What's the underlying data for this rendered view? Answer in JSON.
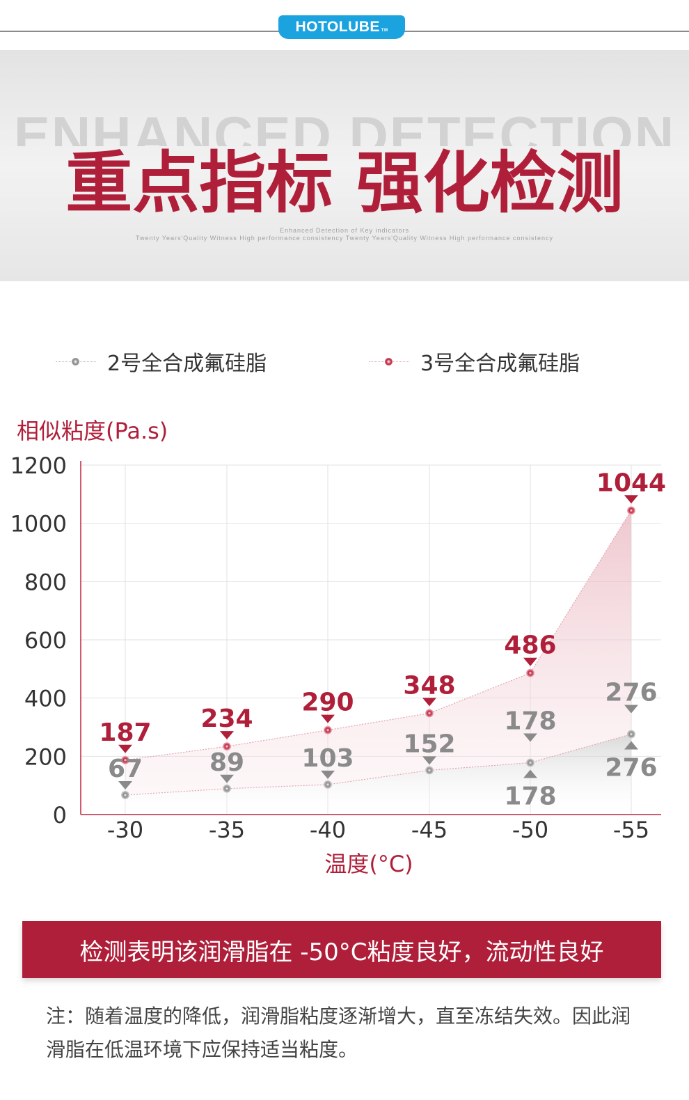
{
  "brand": {
    "name": "HOTOLUBE",
    "tm": "TM",
    "color": "#1aa3df"
  },
  "hero": {
    "title_en": "ENHANCED DETECTION",
    "title_cn": "重点指标 强化检测",
    "subtitle_1": "Enhanced Detection of Key indicators",
    "subtitle_2": "Twenty Years'Quality Witness High performance consistency Twenty Years'Quality Witness High performance consistency"
  },
  "legend": [
    {
      "label": "2号全合成氟硅脂",
      "color": "#8a8a8a"
    },
    {
      "label": "3号全合成氟硅脂",
      "color": "#c0243f"
    }
  ],
  "chart_data": {
    "type": "area",
    "ylabel": "相似粘度(Pa.s)",
    "xlabel": "温度(°C)",
    "categories": [
      "-30",
      "-35",
      "-40",
      "-45",
      "-50",
      "-55"
    ],
    "yticks": [
      "1200",
      "1000",
      "800",
      "600",
      "400",
      "200",
      "0"
    ],
    "ylim": [
      0,
      1200
    ],
    "grid": true,
    "legend_position": "top",
    "series": [
      {
        "name": "2号全合成氟硅脂",
        "color": "#8a8a8a",
        "values": [
          67,
          89,
          103,
          152,
          178,
          276
        ]
      },
      {
        "name": "3号全合成氟硅脂",
        "color": "#c0243f",
        "values": [
          187,
          234,
          290,
          348,
          486,
          1044
        ]
      }
    ],
    "annotations": [
      {
        "series": 1,
        "index": 4,
        "text": "178",
        "position": "above"
      },
      {
        "series": 1,
        "index": 4,
        "text": "178",
        "position": "below"
      },
      {
        "series": 1,
        "index": 5,
        "text": "276",
        "position": "above"
      },
      {
        "series": 1,
        "index": 5,
        "text": "276",
        "position": "below"
      }
    ]
  },
  "banner": {
    "text": "检测表明该润滑脂在 -50°C粘度良好，流动性良好",
    "color": "#b01f3a"
  },
  "note": {
    "text": "注：随着温度的降低，润滑脂粘度逐渐增大，直至冻结失效。因此润滑脂在低温环境下应保持适当粘度。"
  }
}
